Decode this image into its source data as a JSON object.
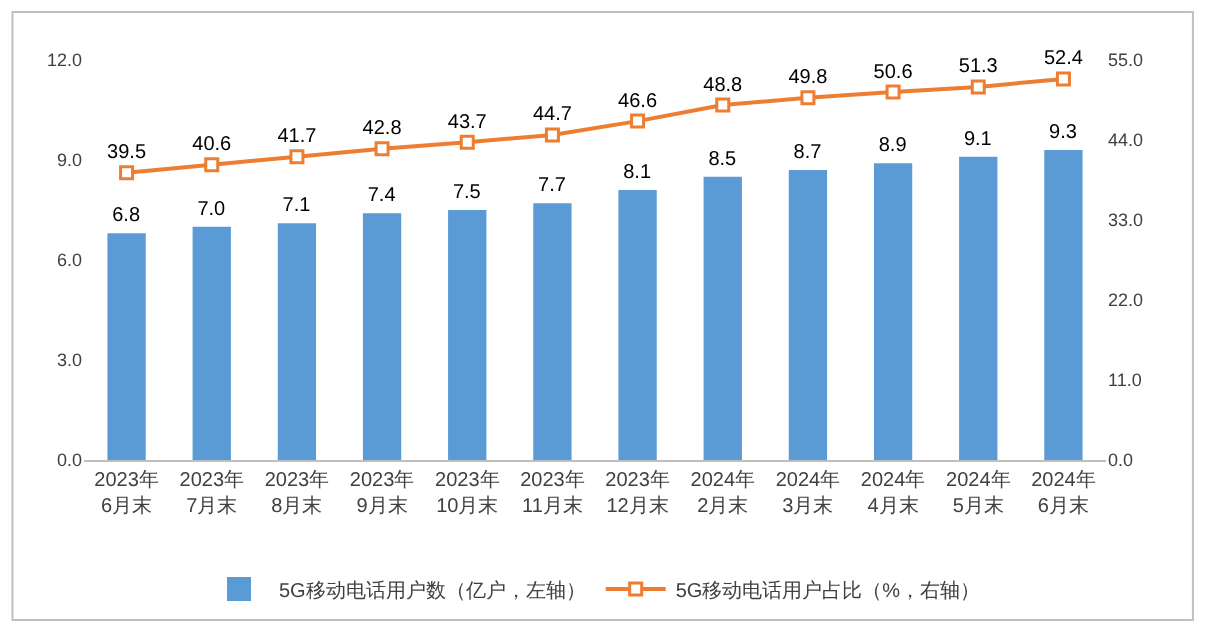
{
  "chart_data": {
    "type": "bar",
    "categories": [
      "2023年\n6月末",
      "2023年\n7月末",
      "2023年\n8月末",
      "2023年\n9月末",
      "2023年\n10月末",
      "2023年\n11月末",
      "2023年\n12月末",
      "2024年\n2月末",
      "2024年\n3月末",
      "2024年\n4月末",
      "2024年\n5月末",
      "2024年\n6月末"
    ],
    "series": [
      {
        "name": "5G移动电话用户数（亿户，左轴）",
        "color": "#5b9bd5",
        "values": [
          6.8,
          7.0,
          7.1,
          7.4,
          7.5,
          7.7,
          8.1,
          8.5,
          8.7,
          8.9,
          9.1,
          9.3
        ],
        "value_labels": [
          "6.8",
          "7.0",
          "7.1",
          "7.4",
          "7.5",
          "7.7",
          "8.1",
          "8.5",
          "8.7",
          "8.9",
          "9.1",
          "9.3"
        ]
      },
      {
        "name": "5G移动电话用户占比（%，右轴）",
        "type": "line",
        "axis": "y2",
        "color": "#ed7d31",
        "values": [
          39.5,
          40.6,
          41.7,
          42.8,
          43.7,
          44.7,
          46.6,
          48.8,
          49.8,
          50.6,
          51.3,
          52.4
        ],
        "value_labels": [
          "39.5",
          "40.6",
          "41.7",
          "42.8",
          "43.7",
          "44.7",
          "46.6",
          "48.8",
          "49.8",
          "50.6",
          "51.3",
          "52.4"
        ]
      }
    ],
    "ylim": [
      0,
      12
    ],
    "yticks": [
      {
        "value": 0,
        "label": "0.0"
      },
      {
        "value": 3,
        "label": "3.0"
      },
      {
        "value": 6,
        "label": "6.0"
      },
      {
        "value": 9,
        "label": "9.0"
      },
      {
        "value": 12,
        "label": "12.0"
      }
    ],
    "y2lim": [
      0,
      55
    ],
    "y2ticks": [
      {
        "value": 0,
        "label": "0.0"
      },
      {
        "value": 11,
        "label": "11.0"
      },
      {
        "value": 22,
        "label": "22.0"
      },
      {
        "value": 33,
        "label": "33.0"
      },
      {
        "value": 44,
        "label": "44.0"
      },
      {
        "value": 55,
        "label": "55.0"
      }
    ],
    "grid": false,
    "legend": "bottom",
    "marker": "square",
    "line_style": "solid"
  }
}
